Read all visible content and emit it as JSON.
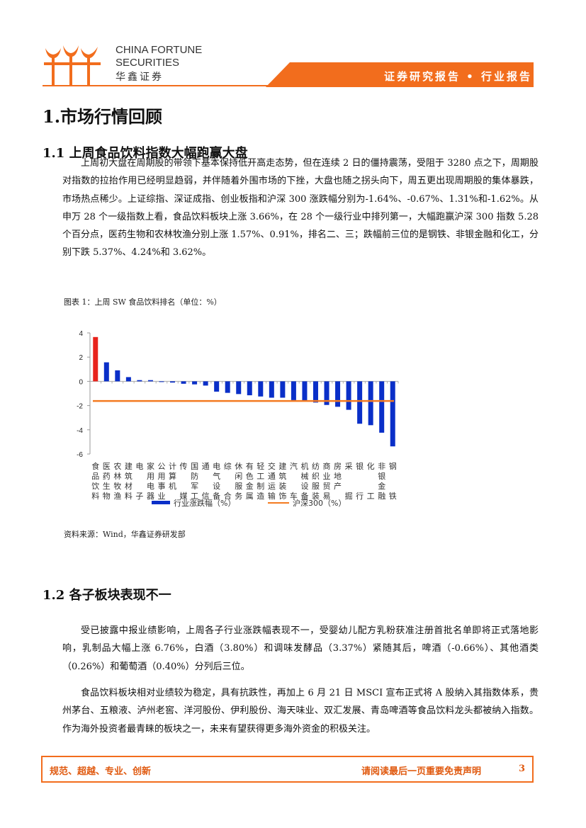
{
  "header": {
    "logo_en_1": "CHINA FORTUNE",
    "logo_en_2": "SECURITIES",
    "logo_cn": "华鑫证券",
    "report_type": "证券研究报告 • 行业报告",
    "brand_color": "#f26d1d"
  },
  "section1": {
    "title": "1.市场行情回顾"
  },
  "section1_1": {
    "title": "1.1 上周食品饮料指数大幅跑赢大盘",
    "paragraph": "上周初大盘在周期股的带领下基本保持低开高走态势，但在连续 2 日的僵持震荡，受阻于 3280 点之下，周期股对指数的拉抬作用已经明显趋弱，并伴随着外围市场的下挫，大盘也随之拐头向下，周五更出现周期股的集体暴跌，市场热点稀少。上证综指、深证成指、创业板指和沪深 300 涨跌幅分别为-1.64%、-0.67%、1.31%和-1.62%。从申万 28 个一级指数上看，食品饮料板块上涨 3.66%，在 28 个一级行业中排列第一，大幅跑赢沪深 300 指数 5.28 个百分点，医药生物和农林牧渔分别上涨 1.57%、0.91%，排名二、三；跌幅前三位的是钢铁、非银金融和化工，分别下跌 5.37%、4.24%和 3.62%。",
    "figure_caption": "图表 1：上周 SW 食品饮料排名（单位：%）",
    "source": "资料来源：Wind，华鑫证券研发部"
  },
  "chart_data": {
    "type": "bar",
    "categories": [
      "食品饮料",
      "医药生物",
      "农林牧渔",
      "建筑材料",
      "电子",
      "家用电器",
      "公用事业",
      "计算机",
      "传媒",
      "国防军工",
      "通信",
      "电气设备",
      "综合",
      "休闲服务",
      "有色金属",
      "轻工制造",
      "交通运输",
      "建筑装饰",
      "汽车",
      "机械设备",
      "纺织服装",
      "商业贸易",
      "房地产",
      "采掘",
      "银行",
      "化工",
      "非银金融",
      "钢铁"
    ],
    "series": [
      {
        "name": "行业涨跌幅（%）",
        "values": [
          3.66,
          1.57,
          0.91,
          0.35,
          0.1,
          0.1,
          -0.05,
          -0.1,
          -0.2,
          -0.25,
          -0.35,
          -0.85,
          -0.95,
          -1.05,
          -1.15,
          -1.25,
          -1.35,
          -1.35,
          -1.55,
          -1.6,
          -1.75,
          -1.95,
          -2.1,
          -2.35,
          -3.5,
          -3.62,
          -4.24,
          -5.37
        ],
        "color": "#0a2fc8",
        "highlight_color": "#e8231c"
      },
      {
        "name": "沪深300（%）",
        "values_constant": -1.62,
        "color": "#f47a20",
        "type": "line"
      }
    ],
    "yticks": [
      4,
      2,
      0,
      -2,
      -4,
      -6
    ],
    "ylim": [
      -6,
      4
    ],
    "grid": false,
    "legend": "bottom"
  },
  "section1_2": {
    "title": "1.2 各子板块表现不一",
    "paragraph1": "受已披露中报业绩影响，上周各子行业涨跌幅表现不一，受婴幼儿配方乳粉获准注册首批名单即将正式落地影响，乳制品大幅上涨 6.76%，白酒（3.80%）和调味发酵品（3.37%）紧随其后，啤酒（-0.66%）、其他酒类（0.26%）和葡萄酒（0.40%）分列后三位。",
    "paragraph2": "食品饮料板块相对业绩较为稳定，具有抗跌性，再加上 6 月 21 日 MSCI 宣布正式将 A 股纳入其指数体系，贵州茅台、五粮液、泸州老窖、洋河股份、伊利股份、海天味业、双汇发展、青岛啤酒等食品饮料龙头都被纳入指数。作为海外投资者最青睐的板块之一，未来有望获得更多海外资金的积极关注。"
  },
  "footer": {
    "slogan": "规范、超越、专业、创新",
    "disclaimer": "请阅读最后一页重要免责声明",
    "page": "3"
  }
}
